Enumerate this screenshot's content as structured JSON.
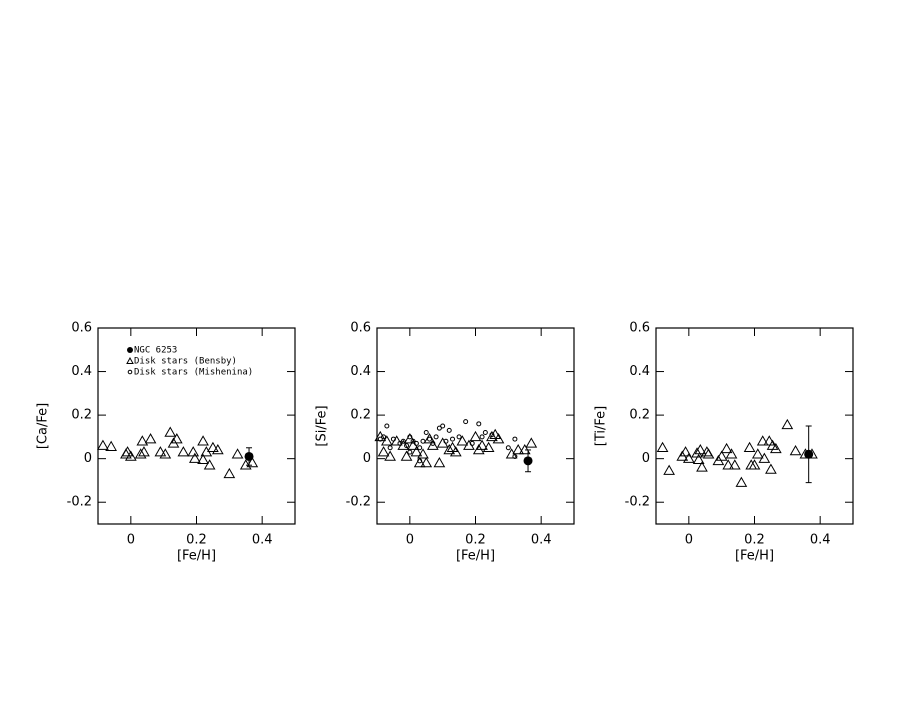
{
  "chart_data": [
    {
      "type": "scatter",
      "xlabel": "[Fe/H]",
      "ylabel": "[Ca/Fe]",
      "xlim": [
        -0.1,
        0.5
      ],
      "ylim": [
        -0.3,
        0.6
      ],
      "xticks": [
        0,
        0.2,
        0.4
      ],
      "yticks": [
        -0.2,
        0,
        0.2,
        0.4,
        0.6
      ],
      "legend": "upper left",
      "series": [
        {
          "name": "NGC 6253",
          "marker": "filled-circle",
          "color": "#000000",
          "x": [
            0.36
          ],
          "y": [
            0.01
          ],
          "error": [
            0.04
          ]
        },
        {
          "name": "Disk stars (Bensby)",
          "marker": "open-triangle",
          "color": "#000000",
          "x": [
            -0.085,
            -0.06,
            -0.015,
            -0.01,
            0,
            0.03,
            0.035,
            0.04,
            0.06,
            0.09,
            0.105,
            0.12,
            0.13,
            0.14,
            0.16,
            0.19,
            0.195,
            0.22,
            0.22,
            0.23,
            0.24,
            0.25,
            0.265,
            0.3,
            0.325,
            0.35,
            0.37
          ],
          "y": [
            0.06,
            0.055,
            0.02,
            0.03,
            0.01,
            0.02,
            0.08,
            0.03,
            0.09,
            0.03,
            0.02,
            0.12,
            0.07,
            0.09,
            0.03,
            0.03,
            0,
            0.08,
            -0.005,
            0.03,
            -0.03,
            0.05,
            0.04,
            -0.07,
            0.02,
            -0.03,
            -0.02
          ]
        },
        {
          "name": "Disk stars (Mishenina)",
          "marker": "open-circle",
          "color": "#000000",
          "x": [],
          "y": []
        }
      ]
    },
    {
      "type": "scatter",
      "xlabel": "[Fe/H]",
      "ylabel": "[Si/Fe]",
      "xlim": [
        -0.1,
        0.5
      ],
      "ylim": [
        -0.3,
        0.6
      ],
      "xticks": [
        0,
        0.2,
        0.4
      ],
      "yticks": [
        -0.2,
        0,
        0.2,
        0.4,
        0.6
      ],
      "series": [
        {
          "marker": "filled-circle",
          "color": "#000000",
          "x": [
            0.36
          ],
          "y": [
            -0.01
          ],
          "error": [
            0.05
          ]
        },
        {
          "marker": "open-triangle",
          "color": "#000000",
          "x": [
            -0.09,
            -0.08,
            -0.07,
            -0.06,
            -0.04,
            -0.02,
            -0.01,
            0,
            0.01,
            0.02,
            0.03,
            0.04,
            0.05,
            0.06,
            0.07,
            0.09,
            0.1,
            0.12,
            0.13,
            0.14,
            0.16,
            0.18,
            0.2,
            0.21,
            0.22,
            0.24,
            0.25,
            0.26,
            0.27,
            0.31,
            0.33,
            0.35,
            0.37
          ],
          "y": [
            0.1,
            0.03,
            0.08,
            0.01,
            0.08,
            0.06,
            0.01,
            0.09,
            0.06,
            0.03,
            -0.02,
            0.02,
            -0.02,
            0.09,
            0.06,
            -0.02,
            0.07,
            0.04,
            0.05,
            0.03,
            0.08,
            0.06,
            0.1,
            0.04,
            0.06,
            0.05,
            0.1,
            0.11,
            0.09,
            0.02,
            0.04,
            0.04,
            0.07
          ]
        },
        {
          "marker": "open-circle",
          "color": "#000000",
          "x": [
            -0.09,
            -0.08,
            -0.07,
            -0.06,
            -0.05,
            -0.03,
            -0.02,
            -0.01,
            0,
            0.01,
            0.02,
            0.03,
            0.04,
            0.05,
            0.06,
            0.07,
            0.08,
            0.09,
            0.1,
            0.11,
            0.12,
            0.13,
            0.15,
            0.17,
            0.19,
            0.21,
            0.22,
            0.23,
            0.25,
            0.3,
            0.32,
            0.32,
            0.03,
            0
          ],
          "y": [
            0.09,
            0.1,
            0.15,
            0.05,
            0.09,
            0.07,
            0.08,
            0.06,
            0.1,
            0.08,
            0.07,
            0.05,
            0.08,
            0.12,
            0.09,
            0.07,
            0.1,
            0.14,
            0.15,
            0.08,
            0.13,
            0.09,
            0.1,
            0.17,
            0.07,
            0.16,
            0.1,
            0.12,
            0.11,
            0.05,
            0.01,
            0.09,
            -0.01,
            0.03
          ]
        }
      ]
    },
    {
      "type": "scatter",
      "xlabel": "[Fe/H]",
      "ylabel": "[Ti/Fe]",
      "xlim": [
        -0.1,
        0.5
      ],
      "ylim": [
        -0.3,
        0.6
      ],
      "xticks": [
        0,
        0.2,
        0.4
      ],
      "yticks": [
        -0.2,
        0,
        0.2,
        0.4,
        0.6
      ],
      "series": [
        {
          "marker": "filled-circle",
          "color": "#000000",
          "x": [
            0.365
          ],
          "y": [
            0.02
          ],
          "error": [
            0.13
          ]
        },
        {
          "marker": "open-triangle",
          "color": "#000000",
          "x": [
            -0.08,
            -0.06,
            -0.02,
            -0.01,
            0,
            0.025,
            0.03,
            0.035,
            0.04,
            0.055,
            0.06,
            0.09,
            0.1,
            0.115,
            0.12,
            0.13,
            0.14,
            0.16,
            0.185,
            0.19,
            0.2,
            0.21,
            0.225,
            0.23,
            0.245,
            0.25,
            0.255,
            0.265,
            0.3,
            0.325,
            0.355,
            0.375
          ],
          "y": [
            0.05,
            -0.055,
            0.01,
            0.03,
            0,
            0.025,
            -0.005,
            0.04,
            -0.04,
            0.03,
            0.02,
            -0.01,
            0.01,
            0.045,
            -0.03,
            0.02,
            -0.03,
            -0.11,
            0.05,
            -0.03,
            -0.03,
            0.02,
            0.08,
            0,
            0.08,
            -0.05,
            0.06,
            0.045,
            0.155,
            0.035,
            0.02,
            0.02
          ]
        }
      ]
    }
  ]
}
